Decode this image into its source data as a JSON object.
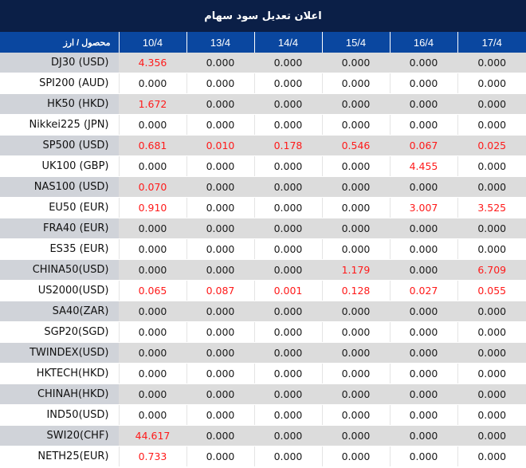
{
  "title": "اعلان تعدیل سود سهام",
  "header": {
    "product_label": "محصول / ارز",
    "dates": [
      "10/4",
      "13/4",
      "14/4",
      "15/4",
      "16/4",
      "17/4"
    ]
  },
  "colors": {
    "title_bg": "#0b1f47",
    "header_bg": "#0a47a0",
    "highlight_text": "#ff1a1a",
    "row_alt_bg": "#dcdcdc"
  },
  "rows": [
    {
      "symbol": "DJ30 (USD)",
      "values": [
        "4.356",
        "0.000",
        "0.000",
        "0.000",
        "0.000",
        "0.000"
      ]
    },
    {
      "symbol": "SPI200 (AUD)",
      "values": [
        "0.000",
        "0.000",
        "0.000",
        "0.000",
        "0.000",
        "0.000"
      ]
    },
    {
      "symbol": "HK50 (HKD)",
      "values": [
        "1.672",
        "0.000",
        "0.000",
        "0.000",
        "0.000",
        "0.000"
      ]
    },
    {
      "symbol": "Nikkei225 (JPN)",
      "values": [
        "0.000",
        "0.000",
        "0.000",
        "0.000",
        "0.000",
        "0.000"
      ]
    },
    {
      "symbol": "SP500 (USD)",
      "values": [
        "0.681",
        "0.010",
        "0.178",
        "0.546",
        "0.067",
        "0.025"
      ]
    },
    {
      "symbol": "UK100 (GBP)",
      "values": [
        "0.000",
        "0.000",
        "0.000",
        "0.000",
        "4.455",
        "0.000"
      ]
    },
    {
      "symbol": "NAS100 (USD)",
      "values": [
        "0.070",
        "0.000",
        "0.000",
        "0.000",
        "0.000",
        "0.000"
      ]
    },
    {
      "symbol": "EU50 (EUR)",
      "values": [
        "0.910",
        "0.000",
        "0.000",
        "0.000",
        "3.007",
        "3.525"
      ]
    },
    {
      "symbol": "FRA40 (EUR)",
      "values": [
        "0.000",
        "0.000",
        "0.000",
        "0.000",
        "0.000",
        "0.000"
      ]
    },
    {
      "symbol": "ES35 (EUR)",
      "values": [
        "0.000",
        "0.000",
        "0.000",
        "0.000",
        "0.000",
        "0.000"
      ]
    },
    {
      "symbol": "CHINA50(USD)",
      "values": [
        "0.000",
        "0.000",
        "0.000",
        "1.179",
        "0.000",
        "6.709"
      ]
    },
    {
      "symbol": "US2000(USD)",
      "values": [
        "0.065",
        "0.087",
        "0.001",
        "0.128",
        "0.027",
        "0.055"
      ]
    },
    {
      "symbol": "SA40(ZAR)",
      "values": [
        "0.000",
        "0.000",
        "0.000",
        "0.000",
        "0.000",
        "0.000"
      ]
    },
    {
      "symbol": "SGP20(SGD)",
      "values": [
        "0.000",
        "0.000",
        "0.000",
        "0.000",
        "0.000",
        "0.000"
      ]
    },
    {
      "symbol": "TWINDEX(USD)",
      "values": [
        "0.000",
        "0.000",
        "0.000",
        "0.000",
        "0.000",
        "0.000"
      ]
    },
    {
      "symbol": "HKTECH(HKD)",
      "values": [
        "0.000",
        "0.000",
        "0.000",
        "0.000",
        "0.000",
        "0.000"
      ]
    },
    {
      "symbol": "CHINAH(HKD)",
      "values": [
        "0.000",
        "0.000",
        "0.000",
        "0.000",
        "0.000",
        "0.000"
      ]
    },
    {
      "symbol": "IND50(USD)",
      "values": [
        "0.000",
        "0.000",
        "0.000",
        "0.000",
        "0.000",
        "0.000"
      ]
    },
    {
      "symbol": "SWI20(CHF)",
      "values": [
        "44.617",
        "0.000",
        "0.000",
        "0.000",
        "0.000",
        "0.000"
      ]
    },
    {
      "symbol": "NETH25(EUR)",
      "values": [
        "0.733",
        "0.000",
        "0.000",
        "0.000",
        "0.000",
        "0.000"
      ]
    }
  ]
}
